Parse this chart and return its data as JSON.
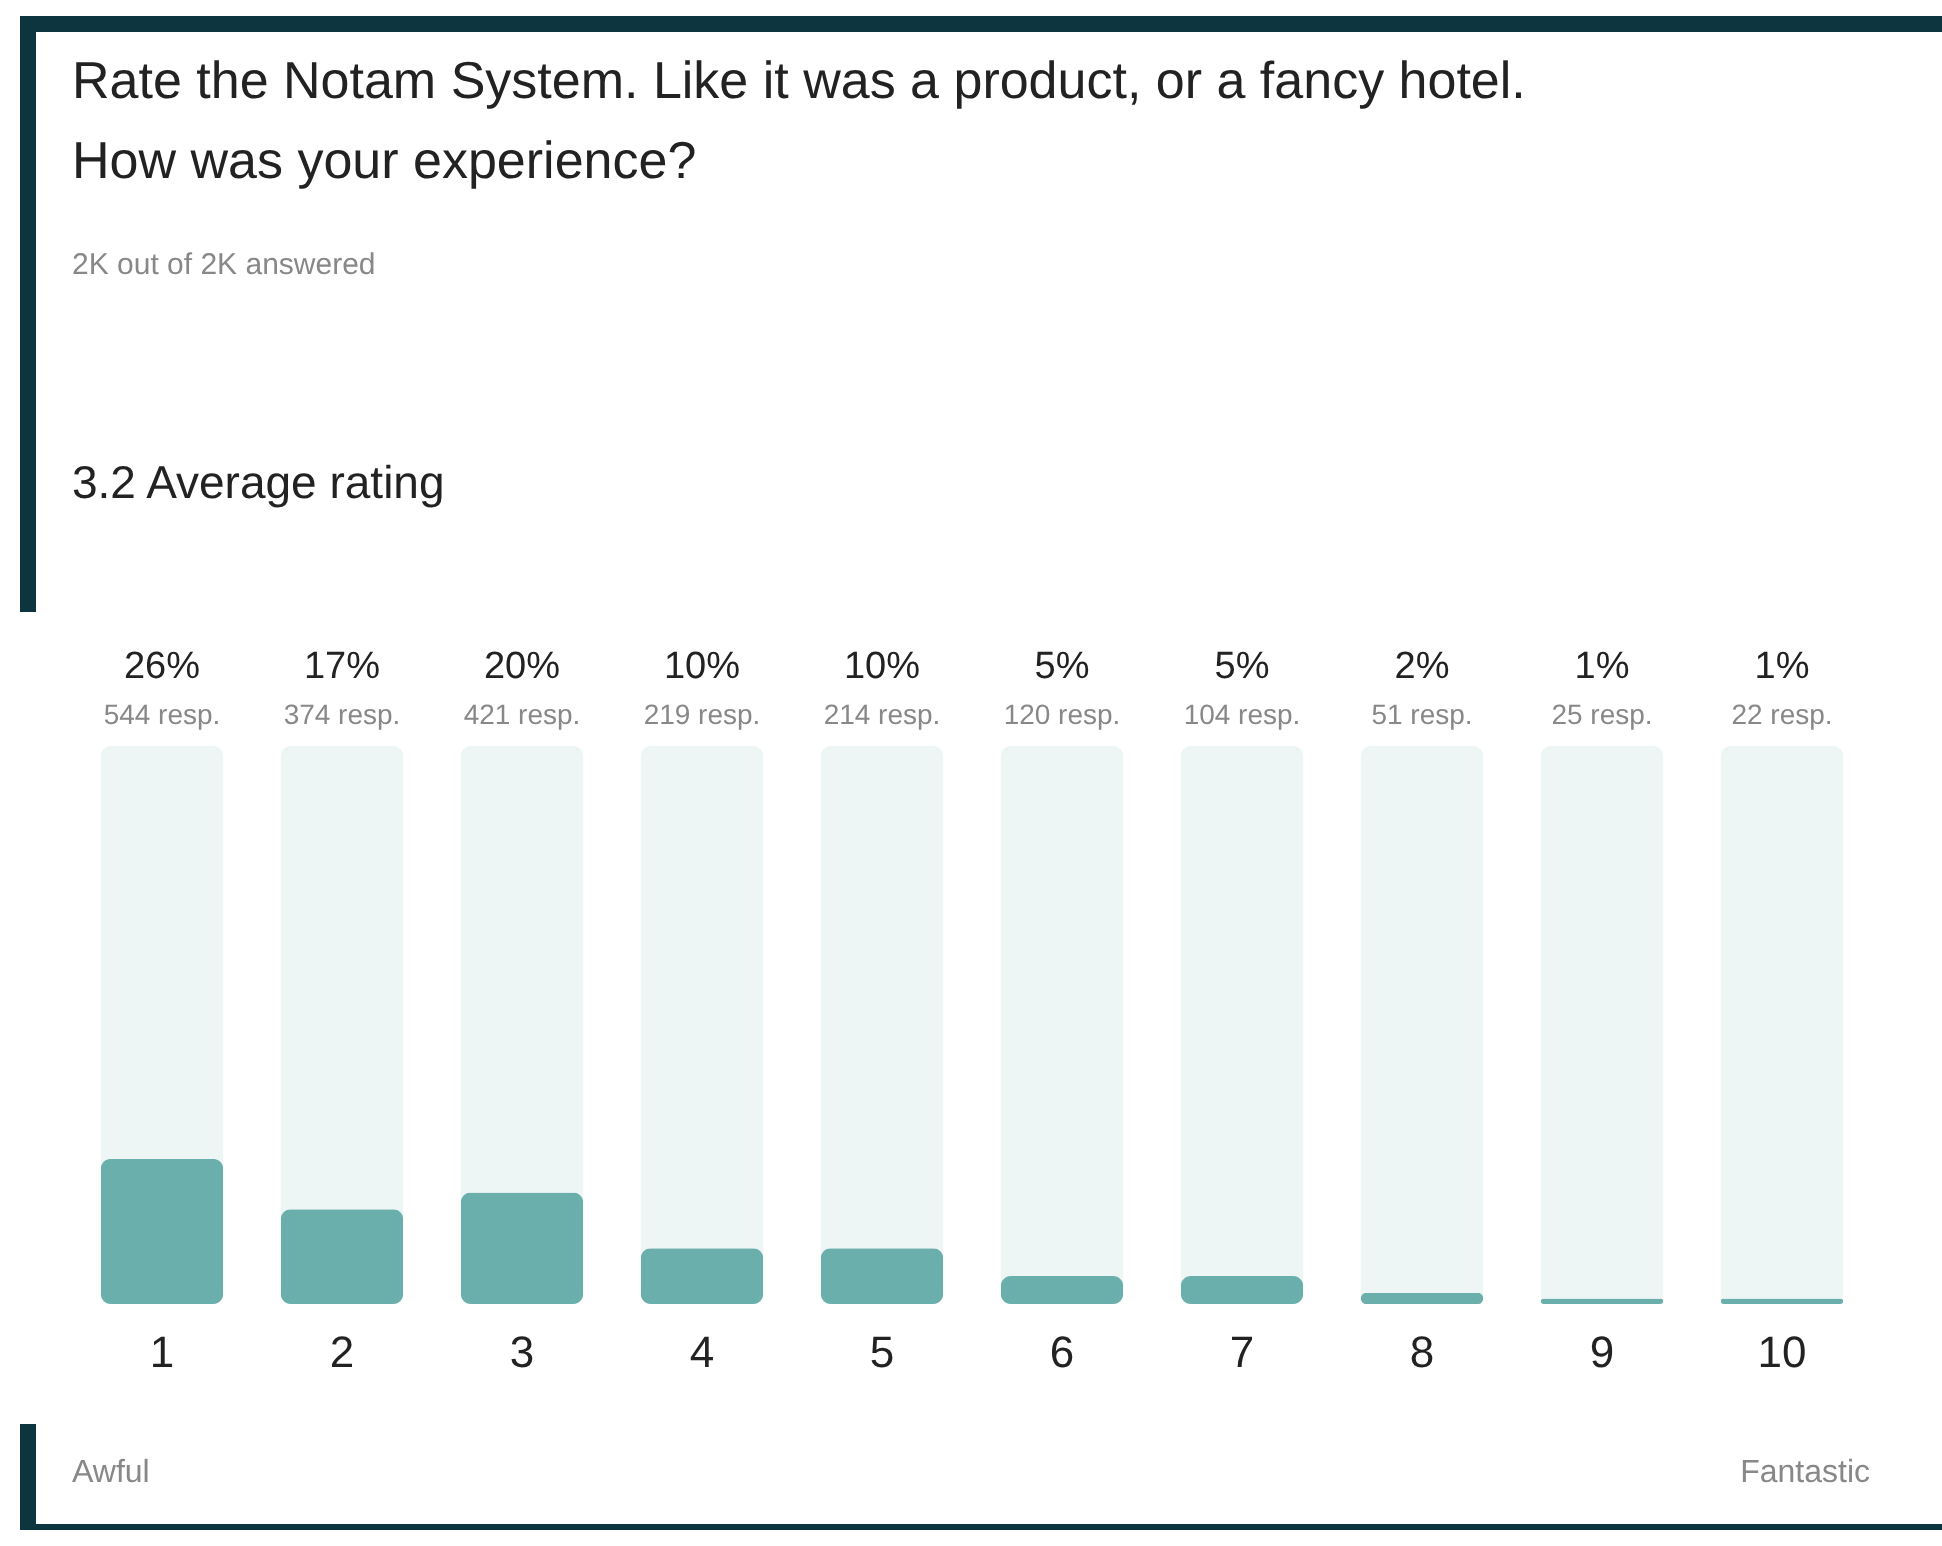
{
  "chart_data": {
    "type": "bar",
    "title": "Rate the Notam System. Like it was a product, or a fancy hotel. How was your experience?",
    "subtitle": "2K out of 2K answered",
    "categories": [
      "1",
      "2",
      "3",
      "4",
      "5",
      "6",
      "7",
      "8",
      "9",
      "10"
    ],
    "values": [
      26,
      17,
      20,
      10,
      10,
      5,
      5,
      2,
      1,
      1
    ],
    "value_labels": [
      "26%",
      "17%",
      "20%",
      "10%",
      "10%",
      "5%",
      "5%",
      "2%",
      "1%",
      "1%"
    ],
    "color": "#6aafab",
    "ylim": [
      0,
      100
    ],
    "annotations": [
      "3.2 Average rating",
      "544 resp.",
      "374 resp.",
      "421 resp.",
      "219 resp.",
      "214 resp.",
      "120 resp.",
      "104 resp.",
      "51 resp.",
      "25 resp.",
      "22 resp.",
      "Awful",
      "Fantastic"
    ],
    "grid": false
  }
}
